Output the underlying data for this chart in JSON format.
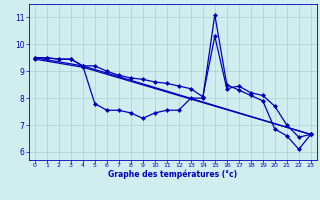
{
  "line1_x": [
    0,
    1,
    2,
    3,
    4,
    5,
    6,
    7,
    8,
    9,
    10,
    11,
    12,
    13,
    14,
    15,
    16,
    17,
    18,
    19,
    20,
    21,
    22,
    23
  ],
  "line1_y": [
    9.5,
    9.5,
    9.45,
    9.45,
    9.2,
    7.8,
    7.55,
    7.55,
    7.45,
    7.25,
    7.45,
    7.55,
    7.55,
    8.0,
    8.0,
    11.1,
    8.5,
    8.3,
    8.1,
    7.9,
    6.85,
    6.6,
    6.1,
    6.65
  ],
  "line2_x": [
    0,
    1,
    2,
    3,
    4,
    5,
    6,
    7,
    8,
    9,
    10,
    11,
    12,
    13,
    14,
    15,
    16,
    17,
    18,
    19,
    20,
    21,
    22,
    23
  ],
  "line2_y": [
    9.5,
    9.5,
    9.45,
    9.45,
    9.2,
    9.2,
    9.0,
    8.85,
    8.75,
    8.7,
    8.6,
    8.55,
    8.45,
    8.35,
    8.05,
    10.3,
    8.35,
    8.45,
    8.2,
    8.1,
    7.7,
    7.0,
    6.55,
    6.65
  ],
  "line3_x": [
    0,
    4,
    23
  ],
  "line3_y": [
    9.5,
    9.2,
    6.65
  ],
  "line4_x": [
    0,
    4,
    23
  ],
  "line4_y": [
    9.45,
    9.15,
    6.65
  ],
  "background_color": "#d0eef0",
  "grid_color": "#aacfcf",
  "line_color": "#0000bb",
  "xlabel": "Graphe des températures (°c)",
  "xlabel_color": "#0000bb",
  "xlim": [
    -0.5,
    23.5
  ],
  "ylim": [
    5.7,
    11.5
  ],
  "yticks": [
    6,
    7,
    8,
    9,
    10,
    11
  ],
  "xticks": [
    0,
    1,
    2,
    3,
    4,
    5,
    6,
    7,
    8,
    9,
    10,
    11,
    12,
    13,
    14,
    15,
    16,
    17,
    18,
    19,
    20,
    21,
    22,
    23
  ],
  "figsize": [
    3.2,
    2.0
  ],
  "dpi": 100
}
